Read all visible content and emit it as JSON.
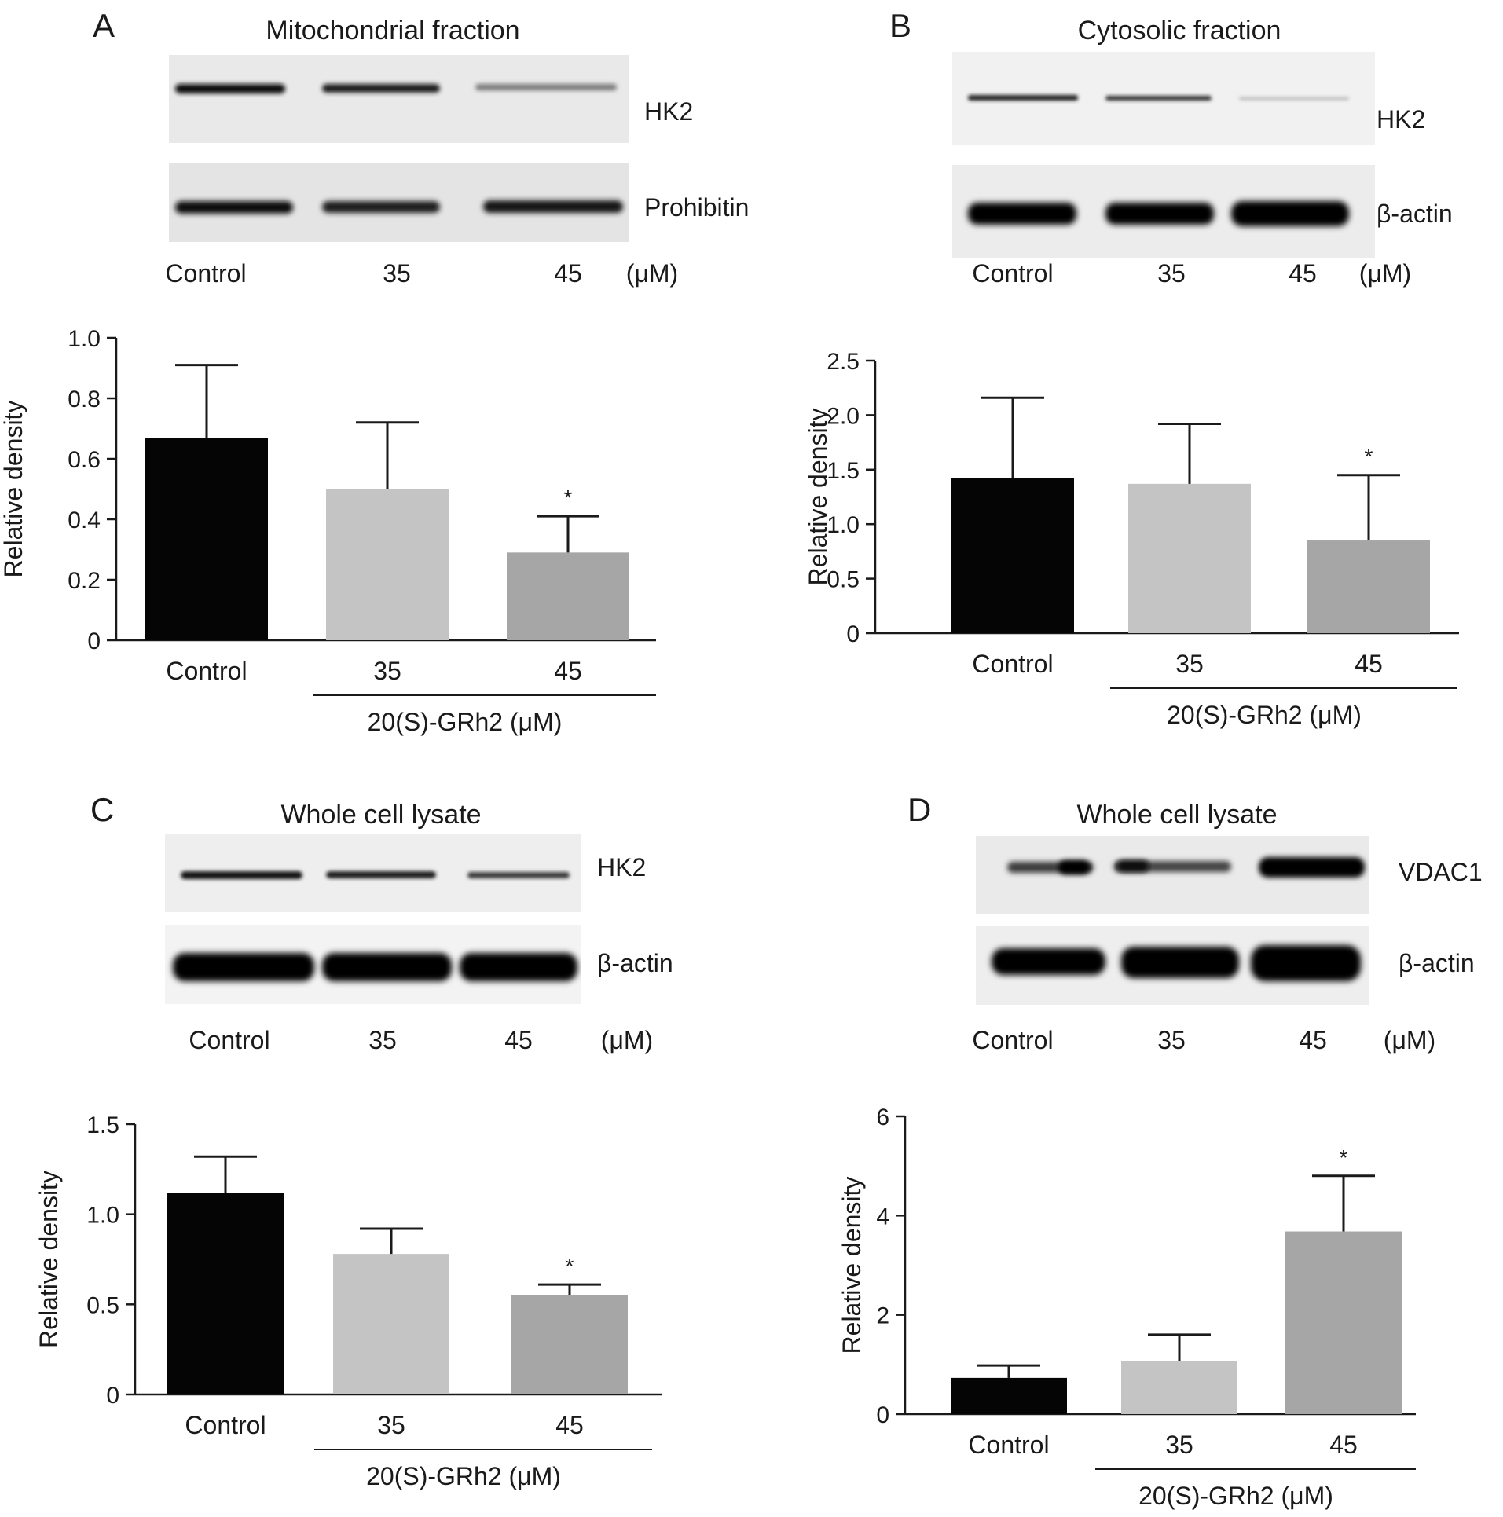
{
  "panels": [
    {
      "letter": "A",
      "blot_title": "Mitochondrial fraction",
      "bands": [
        "HK2",
        "Prohibitin"
      ],
      "lanes": [
        "Control",
        "35",
        "45",
        "(μM)"
      ]
    },
    {
      "letter": "B",
      "blot_title": "Cytosolic fraction",
      "bands": [
        "HK2",
        "β-actin"
      ],
      "lanes": [
        "Control",
        "35",
        "45",
        "(μM)"
      ]
    },
    {
      "letter": "C",
      "blot_title": "Whole cell lysate",
      "bands": [
        "HK2",
        "β-actin"
      ],
      "lanes": [
        "Control",
        "35",
        "45",
        "(μM)"
      ]
    },
    {
      "letter": "D",
      "blot_title": "Whole cell lysate",
      "bands": [
        "VDAC1",
        "β-actin"
      ],
      "lanes": [
        "Control",
        "35",
        "45",
        "(μM)"
      ]
    }
  ],
  "chart_data": [
    {
      "type": "bar",
      "categories": [
        "Control",
        "35",
        "45"
      ],
      "values": [
        0.67,
        0.5,
        0.29
      ],
      "errors": [
        0.24,
        0.22,
        0.12
      ],
      "significance": [
        "",
        "",
        "*"
      ],
      "colors": [
        "#050505",
        "#c4c4c4",
        "#a6a6a6"
      ],
      "ylabel": "Relative density",
      "xlabel": "20(S)-GRh2 (μM)",
      "ylim": [
        0,
        1.0
      ],
      "yticks": [
        "0",
        "0.2",
        "0.4",
        "0.6",
        "0.8",
        "1.0"
      ],
      "ytick_values": [
        0,
        0.2,
        0.4,
        0.6,
        0.8,
        1.0
      ]
    },
    {
      "type": "bar",
      "categories": [
        "Control",
        "35",
        "45"
      ],
      "values": [
        1.42,
        1.37,
        0.85
      ],
      "errors": [
        0.74,
        0.55,
        0.6
      ],
      "significance": [
        "",
        "",
        "*"
      ],
      "colors": [
        "#050505",
        "#c4c4c4",
        "#a6a6a6"
      ],
      "ylabel": "Relative density",
      "xlabel": "20(S)-GRh2 (μM)",
      "ylim": [
        0,
        2.5
      ],
      "yticks": [
        "0",
        "0.5",
        "1.0",
        "1.5",
        "2.0",
        "2.5"
      ],
      "ytick_values": [
        0,
        0.5,
        1.0,
        1.5,
        2.0,
        2.5
      ]
    },
    {
      "type": "bar",
      "categories": [
        "Control",
        "35",
        "45"
      ],
      "values": [
        1.12,
        0.78,
        0.55
      ],
      "errors": [
        0.2,
        0.14,
        0.06
      ],
      "significance": [
        "",
        "",
        "*"
      ],
      "colors": [
        "#050505",
        "#c4c4c4",
        "#a6a6a6"
      ],
      "ylabel": "Relative density",
      "xlabel": "20(S)-GRh2 (μM)",
      "ylim": [
        0,
        1.5
      ],
      "yticks": [
        "0",
        "0.5",
        "1.0",
        "1.5"
      ],
      "ytick_values": [
        0,
        0.5,
        1.0,
        1.5
      ]
    },
    {
      "type": "bar",
      "categories": [
        "Control",
        "35",
        "45"
      ],
      "values": [
        0.73,
        1.07,
        3.68
      ],
      "errors": [
        0.25,
        0.53,
        1.12
      ],
      "significance": [
        "",
        "",
        "*"
      ],
      "colors": [
        "#050505",
        "#c4c4c4",
        "#a6a6a6"
      ],
      "ylabel": "Relative density",
      "xlabel": "20(S)-GRh2 (μM)",
      "ylim": [
        0,
        6
      ],
      "yticks": [
        "0",
        "2",
        "4",
        "6"
      ],
      "ytick_values": [
        0,
        2,
        4,
        6
      ]
    }
  ]
}
